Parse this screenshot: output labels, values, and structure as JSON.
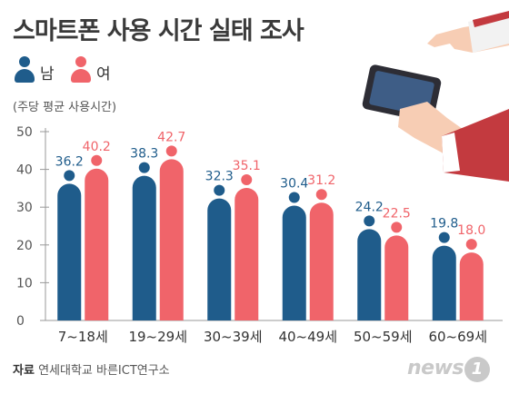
{
  "title": "스마트폰 사용 시간 실태 조사",
  "legend": {
    "male": "남",
    "female": "여"
  },
  "unit_label": "(주당 평균 사용시간)",
  "source": {
    "label": "자료",
    "text": "연세대학교 바른ICT연구소"
  },
  "logo": {
    "word": "news",
    "badge": "1"
  },
  "colors": {
    "male": "#1f5c8b",
    "female": "#f0646a",
    "axis": "#999999",
    "grid_text": "#555555"
  },
  "chart_data": {
    "type": "bar",
    "categories": [
      "7~18세",
      "19~29세",
      "30~39세",
      "40~49세",
      "50~59세",
      "60~69세"
    ],
    "series": [
      {
        "name": "남",
        "values": [
          36.2,
          38.3,
          32.3,
          30.4,
          24.2,
          19.8
        ]
      },
      {
        "name": "여",
        "values": [
          40.2,
          42.7,
          35.1,
          31.2,
          22.5,
          18.0
        ]
      }
    ],
    "ylim": [
      0,
      50
    ],
    "yticks": [
      0,
      10,
      20,
      30,
      40,
      50
    ]
  }
}
